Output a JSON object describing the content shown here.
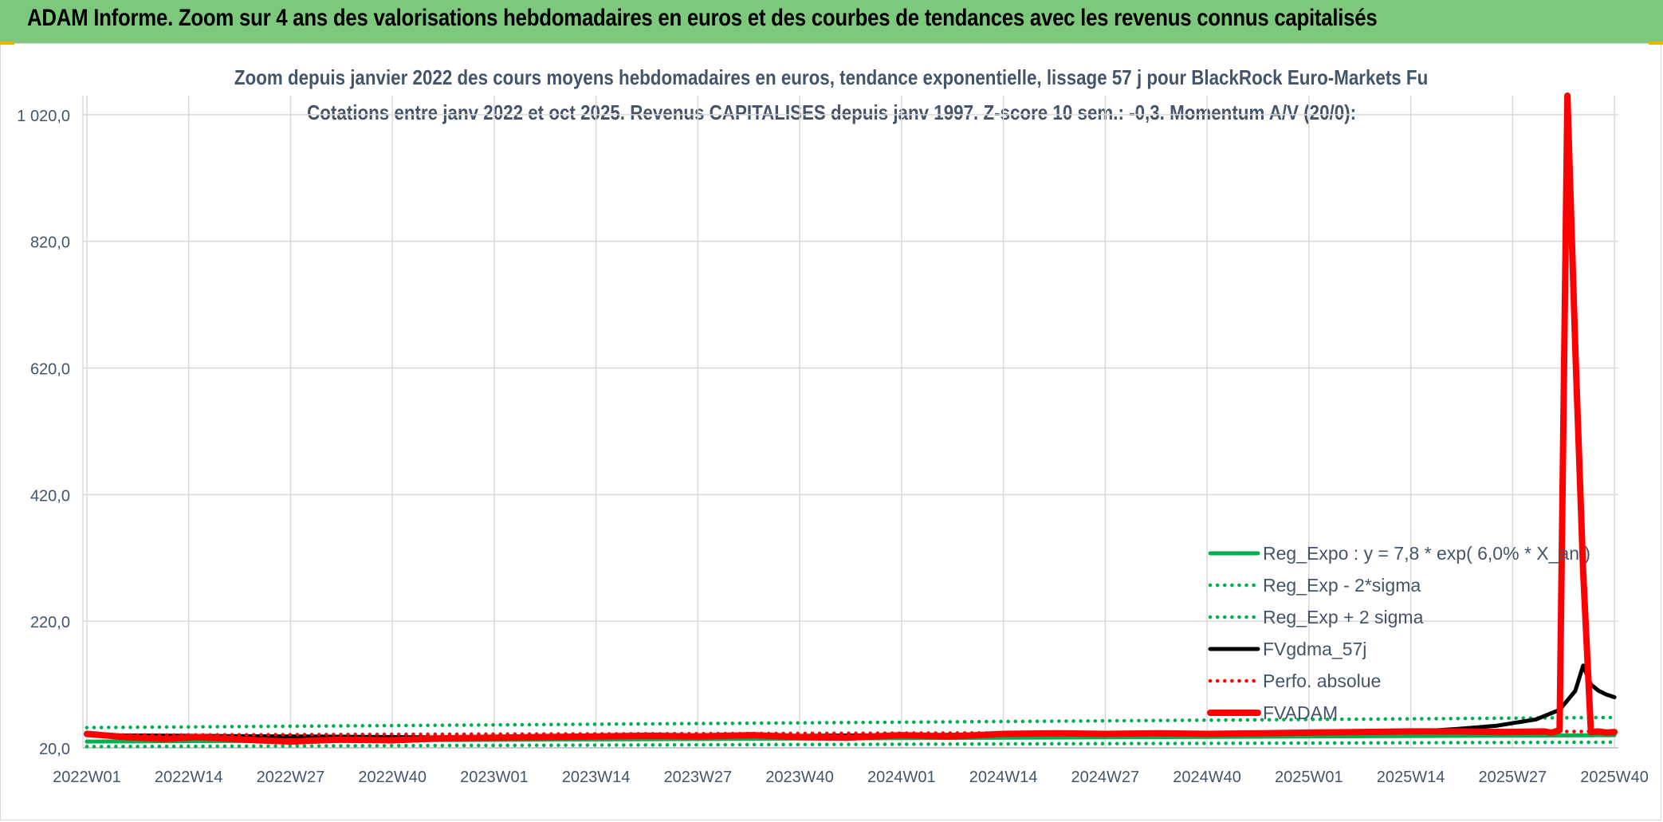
{
  "header": {
    "title": "ADAM Informe. Zoom sur 4 ans des valorisations hebdomadaires en euros et des courbes de tendances avec les revenus connus capitalisés"
  },
  "chart_data": {
    "type": "line",
    "title_line1": "Zoom depuis janvier 2022 des cours moyens hebdomadaires en euros, tendance exponentielle, lissage 57 j pour BlackRock Euro-Markets Fu",
    "title_line2": "Cotations entre janv 2022 et oct 2025. Revenus CAPITALISES depuis janv 1997. Z-score 10 sem.: -0,3. Momentum A/V (20/0):",
    "ylim": [
      20,
      1050
    ],
    "yticks": [
      20,
      220,
      420,
      620,
      820,
      1020
    ],
    "ytick_labels": [
      "20,0",
      "220,0",
      "420,0",
      "620,0",
      "820,0",
      "1 020,0"
    ],
    "x_week_count": 196,
    "xtick_positions": [
      0,
      13,
      26,
      39,
      52,
      65,
      78,
      91,
      104,
      117,
      130,
      143,
      156,
      169,
      182,
      195
    ],
    "xtick_labels": [
      "2022W01",
      "2022W14",
      "2022W27",
      "2022W40",
      "2023W01",
      "2023W14",
      "2023W27",
      "2023W40",
      "2024W01",
      "2024W14",
      "2024W27",
      "2024W40",
      "2025W01",
      "2025W14",
      "2025W27",
      "2025W40"
    ],
    "grid": true,
    "legend_position": "bottom-right",
    "series": [
      {
        "name": "Reg_Expo : y = 7,8 * exp( 6,0% *  X_an )",
        "color": "#00b050",
        "style": "solid",
        "x": [
          0,
          195
        ],
        "values": [
          30,
          40
        ]
      },
      {
        "name": "Reg_Exp - 2*sigma",
        "color": "#00b050",
        "style": "dotted",
        "x": [
          0,
          195
        ],
        "values": [
          22,
          29
        ]
      },
      {
        "name": "Reg_Exp + 2 sigma",
        "color": "#00b050",
        "style": "dotted",
        "x": [
          0,
          195
        ],
        "values": [
          52,
          68
        ]
      },
      {
        "name": "FVgdma_57j",
        "color": "#000000",
        "style": "solid",
        "x": [
          0,
          26,
          39,
          52,
          78,
          104,
          130,
          156,
          165,
          170,
          175,
          180,
          185,
          188,
          190,
          191,
          192,
          193,
          194,
          195
        ],
        "values": [
          40,
          38,
          37,
          36,
          38,
          40,
          42,
          43,
          44,
          46,
          50,
          55,
          65,
          80,
          110,
          150,
          120,
          110,
          104,
          100
        ]
      },
      {
        "name": "Perfo. absolue",
        "color": "#ff0000",
        "style": "dotted",
        "x": [
          0,
          195
        ],
        "values": [
          40,
          46
        ]
      },
      {
        "name": "FVADAM",
        "color": "#ff0000",
        "style": "solid",
        "x": [
          0,
          5,
          10,
          14,
          20,
          26,
          32,
          39,
          45,
          52,
          58,
          65,
          72,
          78,
          85,
          91,
          97,
          104,
          110,
          117,
          124,
          130,
          137,
          143,
          150,
          156,
          163,
          169,
          175,
          181,
          186,
          187,
          188,
          189,
          190,
          191,
          192,
          193,
          194,
          195
        ],
        "values": [
          42,
          37,
          34,
          37,
          33,
          30,
          33,
          32,
          35,
          36,
          37,
          38,
          39,
          38,
          40,
          37,
          36,
          40,
          38,
          42,
          43,
          42,
          43,
          42,
          43,
          44,
          45,
          46,
          46,
          45,
          46,
          44,
          48,
          1050,
          650,
          300,
          45,
          46,
          44,
          45
        ]
      }
    ]
  }
}
